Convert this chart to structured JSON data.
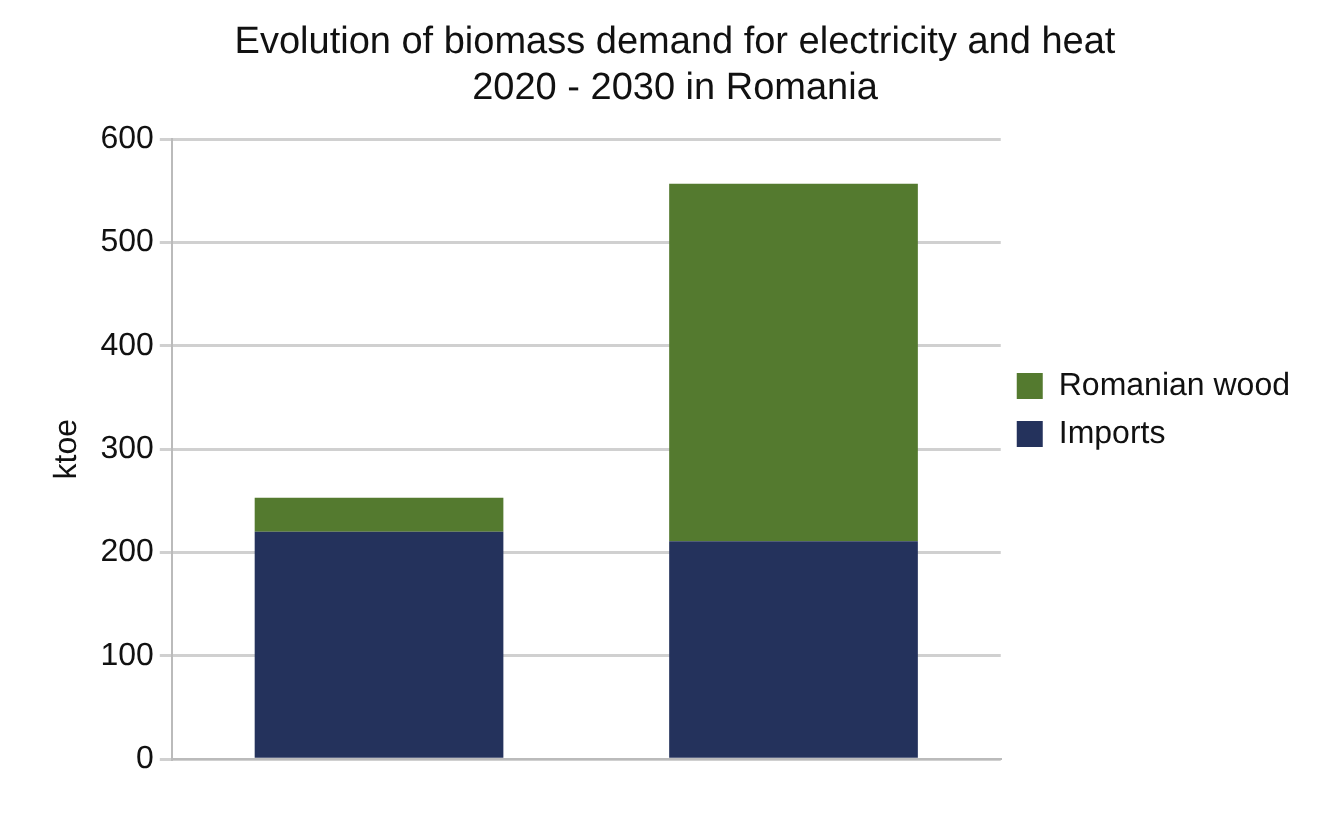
{
  "chart_data": {
    "type": "bar",
    "title": "Evolution of biomass demand for electricity and heat\n2020 - 2030 in Romania",
    "ylabel": "ktoe",
    "categories": [
      null,
      null
    ],
    "stacked": true,
    "series": [
      {
        "name": "Imports",
        "color": "#24325c",
        "values": [
          220,
          211
        ]
      },
      {
        "name": "Romanian wood",
        "color": "#547a2f",
        "values": [
          33,
          346
        ]
      }
    ],
    "ylim": [
      0,
      600
    ],
    "yticks": [
      0,
      100,
      200,
      300,
      400,
      500,
      600
    ],
    "grid": "y",
    "legend": "right"
  }
}
